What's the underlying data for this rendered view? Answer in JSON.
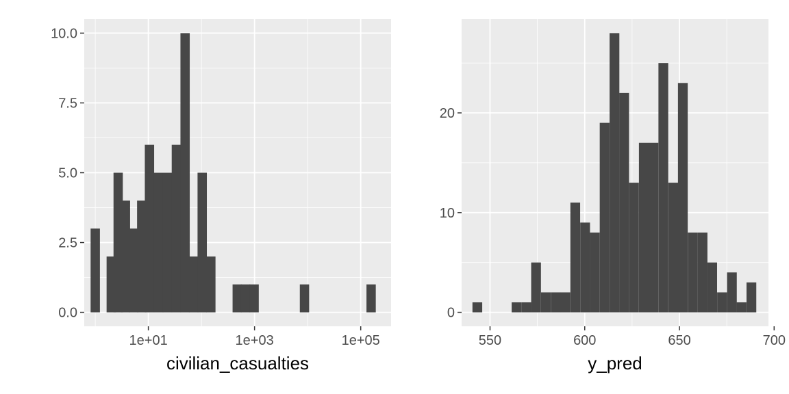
{
  "chart_data": [
    {
      "type": "bar",
      "xlabel": "civilian_casualties",
      "ylabel": "",
      "x_scale": "log10",
      "xlim": [
        1.95,
        373
      ],
      "ylim": [
        -0.5,
        10.5
      ],
      "bin_width_log10": 0.1752,
      "x_ticks": [
        {
          "value": 10,
          "label": "1e+01"
        },
        {
          "value": 1000,
          "label": "1e+03"
        },
        {
          "value": 100000,
          "label": "1e+05"
        }
      ],
      "y_ticks": [
        {
          "value": 0,
          "label": "0.0"
        },
        {
          "value": 2.5,
          "label": "2.5"
        },
        {
          "value": 5,
          "label": "5.0"
        },
        {
          "value": 7.5,
          "label": "7.5"
        },
        {
          "value": 10,
          "label": "10.0"
        }
      ],
      "bins": [
        {
          "x": 1.0,
          "count": 3
        },
        {
          "x": 2.0,
          "count": 2
        },
        {
          "x": 2.7,
          "count": 5
        },
        {
          "x": 3.7,
          "count": 4
        },
        {
          "x": 5.3,
          "count": 3
        },
        {
          "x": 7.5,
          "count": 4
        },
        {
          "x": 10.5,
          "count": 6
        },
        {
          "x": 15.6,
          "count": 5
        },
        {
          "x": 22.8,
          "count": 5
        },
        {
          "x": 33.7,
          "count": 6
        },
        {
          "x": 49.2,
          "count": 10
        },
        {
          "x": 71.2,
          "count": 2
        },
        {
          "x": 103.3,
          "count": 5
        },
        {
          "x": 150.3,
          "count": 2
        },
        {
          "x": 472,
          "count": 1
        },
        {
          "x": 677,
          "count": 1
        },
        {
          "x": 982,
          "count": 1
        },
        {
          "x": 8720,
          "count": 1
        },
        {
          "x": 157000,
          "count": 1
        }
      ],
      "bar_color": "#474747",
      "grid": true
    },
    {
      "type": "bar",
      "xlabel": "y_pred",
      "ylabel": "",
      "xlim": [
        535,
        697
      ],
      "ylim": [
        -1.4,
        29.4
      ],
      "bin_width": 5.16,
      "x_ticks": [
        {
          "value": 550,
          "label": "550"
        },
        {
          "value": 600,
          "label": "600"
        },
        {
          "value": 650,
          "label": "650"
        },
        {
          "value": 700,
          "label": "700"
        }
      ],
      "y_ticks": [
        {
          "value": 0,
          "label": "0"
        },
        {
          "value": 10,
          "label": "10"
        },
        {
          "value": 20,
          "label": "20"
        }
      ],
      "bins": [
        {
          "x": 543.3,
          "count": 1
        },
        {
          "x": 548.5,
          "count": 0
        },
        {
          "x": 553.7,
          "count": 0
        },
        {
          "x": 558.8,
          "count": 0
        },
        {
          "x": 564.0,
          "count": 1
        },
        {
          "x": 569.2,
          "count": 1
        },
        {
          "x": 574.3,
          "count": 5
        },
        {
          "x": 579.5,
          "count": 2
        },
        {
          "x": 584.7,
          "count": 2
        },
        {
          "x": 589.8,
          "count": 2
        },
        {
          "x": 595.0,
          "count": 11
        },
        {
          "x": 600.2,
          "count": 9
        },
        {
          "x": 605.3,
          "count": 8
        },
        {
          "x": 610.5,
          "count": 19
        },
        {
          "x": 615.7,
          "count": 28
        },
        {
          "x": 620.8,
          "count": 22
        },
        {
          "x": 626.0,
          "count": 13
        },
        {
          "x": 631.2,
          "count": 17
        },
        {
          "x": 636.3,
          "count": 17
        },
        {
          "x": 641.5,
          "count": 25
        },
        {
          "x": 646.7,
          "count": 13
        },
        {
          "x": 651.8,
          "count": 23
        },
        {
          "x": 657.0,
          "count": 8
        },
        {
          "x": 662.2,
          "count": 8
        },
        {
          "x": 667.3,
          "count": 5
        },
        {
          "x": 672.5,
          "count": 2
        },
        {
          "x": 677.7,
          "count": 4
        },
        {
          "x": 682.8,
          "count": 1
        },
        {
          "x": 688.0,
          "count": 3
        }
      ],
      "bar_color": "#474747",
      "grid": true
    }
  ],
  "colors": {
    "panel_background": "#ebebeb",
    "grid_line": "#ffffff",
    "axis_text": "#4d4d4d",
    "tick_mark": "#333333"
  }
}
